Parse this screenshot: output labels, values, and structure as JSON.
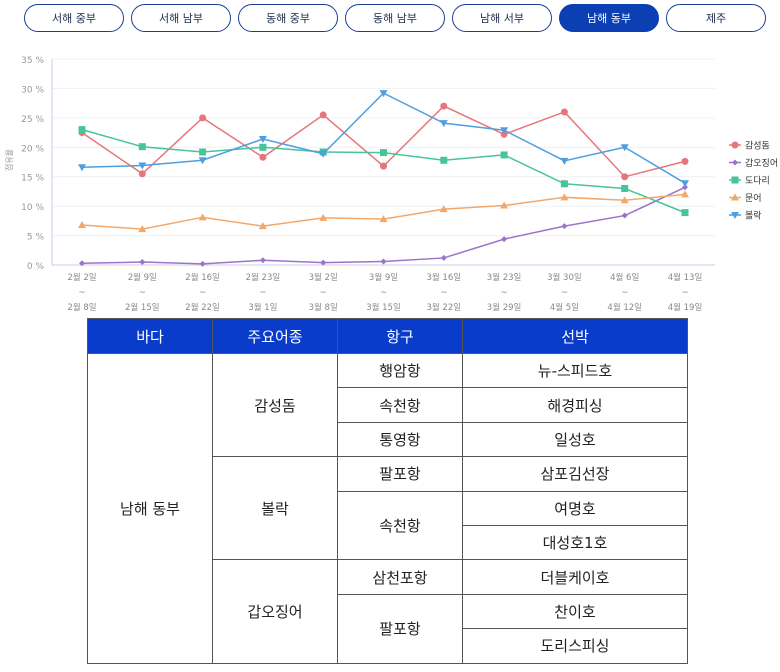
{
  "tabs": [
    {
      "label": "서해 중부"
    },
    {
      "label": "서해 남부"
    },
    {
      "label": "동해 중부"
    },
    {
      "label": "동해 남부"
    },
    {
      "label": "남해 서부"
    },
    {
      "label": "남해 동부",
      "active": true
    },
    {
      "label": "제주"
    }
  ],
  "chart_data": {
    "type": "line",
    "ylabel": "점유율",
    "ylim": [
      0,
      35
    ],
    "yticks": [
      "0 %",
      "5 %",
      "10 %",
      "15 %",
      "20 %",
      "25 %",
      "30 %",
      "35 %"
    ],
    "categories": [
      [
        "2월 2일",
        "~",
        "2월 8일"
      ],
      [
        "2월 9일",
        "~",
        "2월 15일"
      ],
      [
        "2월 16일",
        "~",
        "2월 22일"
      ],
      [
        "2월 23일",
        "~",
        "3월 1일"
      ],
      [
        "3월 2일",
        "~",
        "3월 8일"
      ],
      [
        "3월 9일",
        "~",
        "3월 15일"
      ],
      [
        "3월 16일",
        "~",
        "3월 22일"
      ],
      [
        "3월 23일",
        "~",
        "3월 29일"
      ],
      [
        "3월 30일",
        "~",
        "4월 5일"
      ],
      [
        "4월 6일",
        "~",
        "4월 12일"
      ],
      [
        "4월 13일",
        "~",
        "4월 19일"
      ]
    ],
    "legend_position": "right",
    "series": [
      {
        "name": "감성돔",
        "color": "#e8757a",
        "marker": "circle",
        "values": [
          22.5,
          15.5,
          25,
          18.3,
          25.5,
          16.8,
          27,
          22.2,
          26,
          15,
          17.6
        ]
      },
      {
        "name": "갑오징어",
        "color": "#9b74c9",
        "marker": "diamond",
        "values": [
          0.3,
          0.5,
          0.2,
          0.8,
          0.4,
          0.6,
          1.2,
          4.4,
          6.6,
          8.4,
          13.2
        ]
      },
      {
        "name": "도다리",
        "color": "#46c49a",
        "marker": "square",
        "values": [
          23,
          20.1,
          19.2,
          20,
          19.2,
          19.1,
          17.8,
          18.7,
          13.8,
          13,
          8.9
        ]
      },
      {
        "name": "문어",
        "color": "#f3a86b",
        "marker": "triangle",
        "values": [
          6.8,
          6.1,
          8.1,
          6.6,
          8,
          7.8,
          9.5,
          10.1,
          11.5,
          11,
          12
        ]
      },
      {
        "name": "볼락",
        "color": "#4f9ee0",
        "marker": "tri-down",
        "values": [
          16.6,
          16.9,
          17.8,
          21.4,
          18.9,
          29.2,
          24.1,
          22.9,
          17.7,
          20,
          13.9
        ]
      }
    ]
  },
  "table": {
    "headers": [
      "바다",
      "주요어종",
      "항구",
      "선박"
    ],
    "sea": "남해 동부",
    "species": [
      "감성돔",
      "볼락",
      "갑오징어"
    ],
    "ports": [
      "행암항",
      "속천항",
      "통영항",
      "팔포항",
      "속천항",
      "삼천포항",
      "팔포항"
    ],
    "boats": [
      "뉴-스피드호",
      "해경피싱",
      "일성호",
      "삼포김선장",
      "여명호",
      "대성호1호",
      "더블케이호",
      "찬이호",
      "도리스피싱"
    ]
  }
}
